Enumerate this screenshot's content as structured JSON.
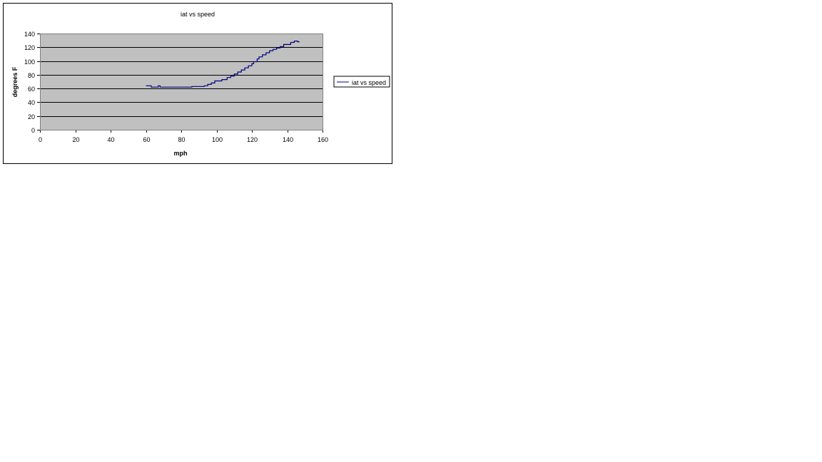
{
  "chart_data": {
    "type": "line",
    "title": "iat vs speed",
    "xlabel": "mph",
    "ylabel": "degrees F",
    "xlim": [
      0,
      160
    ],
    "ylim": [
      0,
      140
    ],
    "x_ticks": [
      0,
      20,
      40,
      60,
      80,
      100,
      120,
      140,
      160
    ],
    "y_ticks": [
      0,
      20,
      40,
      60,
      80,
      100,
      120,
      140
    ],
    "grid": "horizontal major gridlines",
    "plot_background": "#c0c0c0",
    "legend_position": "right",
    "series": [
      {
        "name": "iat vs speed",
        "color": "#000080",
        "points": [
          [
            60,
            64
          ],
          [
            63,
            64
          ],
          [
            63,
            62
          ],
          [
            67,
            62
          ],
          [
            67,
            64
          ],
          [
            68,
            64
          ],
          [
            68,
            62
          ],
          [
            86,
            62
          ],
          [
            86,
            63
          ],
          [
            93,
            63
          ],
          [
            93,
            64
          ],
          [
            95,
            64
          ],
          [
            95,
            66
          ],
          [
            97,
            66
          ],
          [
            97,
            68
          ],
          [
            99,
            68
          ],
          [
            99,
            71
          ],
          [
            103,
            71
          ],
          [
            103,
            73
          ],
          [
            106,
            73
          ],
          [
            106,
            76
          ],
          [
            108,
            76
          ],
          [
            108,
            78
          ],
          [
            110,
            78
          ],
          [
            110,
            81
          ],
          [
            112,
            81
          ],
          [
            112,
            84
          ],
          [
            114,
            84
          ],
          [
            114,
            87
          ],
          [
            116,
            87
          ],
          [
            116,
            90
          ],
          [
            118,
            90
          ],
          [
            118,
            93
          ],
          [
            120,
            93
          ],
          [
            120,
            96
          ],
          [
            121,
            96
          ],
          [
            121,
            99
          ],
          [
            123,
            99
          ],
          [
            123,
            103
          ],
          [
            124,
            103
          ],
          [
            124,
            106
          ],
          [
            126,
            106
          ],
          [
            126,
            109
          ],
          [
            128,
            109
          ],
          [
            128,
            112
          ],
          [
            130,
            112
          ],
          [
            130,
            115
          ],
          [
            132,
            115
          ],
          [
            132,
            117
          ],
          [
            134,
            117
          ],
          [
            134,
            119
          ],
          [
            136,
            119
          ],
          [
            136,
            121
          ],
          [
            138,
            121
          ],
          [
            138,
            124
          ],
          [
            142,
            124
          ],
          [
            142,
            127
          ],
          [
            144,
            127
          ],
          [
            144,
            129
          ],
          [
            146,
            129
          ],
          [
            146,
            128
          ],
          [
            147,
            128
          ]
        ]
      }
    ]
  }
}
